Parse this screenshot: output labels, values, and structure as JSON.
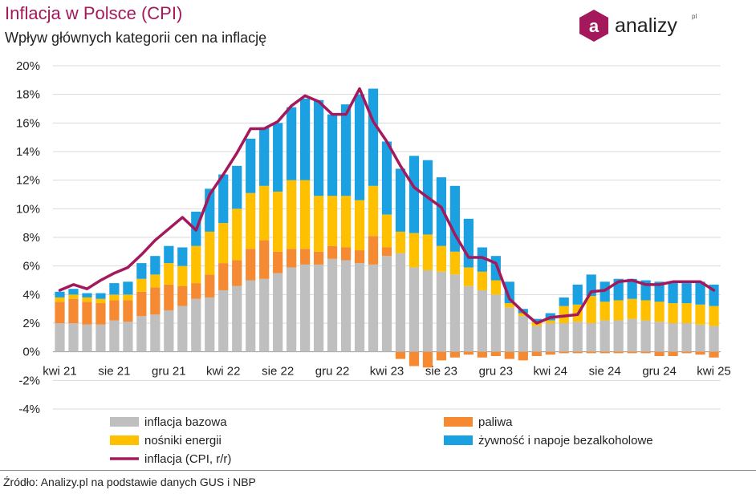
{
  "header": {
    "title": "Inflacja w Polsce (CPI)",
    "subtitle": "Wpływ głównych kategorii cen na inflację"
  },
  "logo": {
    "brand": "analizy",
    "suffix": "pl",
    "letter": "a",
    "color": "#a3195b"
  },
  "source": "Źródło: Analizy.pl na podstawie danych GUS i NBP",
  "colors": {
    "bazowa": "#bfbfbf",
    "paliwa": "#f58a33",
    "energia": "#ffc000",
    "zywnosc": "#1ba1e2",
    "cpi": "#a3195b",
    "title": "#a3195b"
  },
  "chart_data": {
    "type": "bar",
    "stacked": true,
    "categories": [
      "kwi 21",
      "maj 21",
      "cze 21",
      "lip 21",
      "sie 21",
      "wrz 21",
      "paź 21",
      "lis 21",
      "gru 21",
      "sty 22",
      "lut 22",
      "mar 22",
      "kwi 22",
      "maj 22",
      "cze 22",
      "lip 22",
      "sie 22",
      "wrz 22",
      "paź 22",
      "lis 22",
      "gru 22",
      "sty 23",
      "lut 23",
      "mar 23",
      "kwi 23",
      "maj 23",
      "cze 23",
      "lip 23",
      "sie 23",
      "wrz 23",
      "paź 23",
      "lis 23",
      "gru 23",
      "sty 24",
      "lut 24",
      "mar 24",
      "kwi 24",
      "maj 24",
      "cze 24",
      "lip 24",
      "sie 24",
      "wrz 24",
      "paź 24",
      "lis 24",
      "gru 24",
      "sty 25",
      "lut 25",
      "mar 25",
      "kwi 25"
    ],
    "tick_labels": [
      "kwi 21",
      "sie 21",
      "gru 21",
      "kwi 22",
      "sie 22",
      "gru 22",
      "kwi 23",
      "sie 23",
      "gru 23",
      "kwi 24",
      "sie 24",
      "gru 24",
      "kwi 25"
    ],
    "y_ticks": [
      "20%",
      "18%",
      "16%",
      "14%",
      "12%",
      "10%",
      "8%",
      "6%",
      "4%",
      "2%",
      "0%",
      "-2%",
      "-4%"
    ],
    "ylim": [
      -4,
      20
    ],
    "y_unit": "%",
    "series": [
      {
        "name": "inflacja bazowa",
        "key": "bazowa",
        "values": [
          2.0,
          2.0,
          1.9,
          1.9,
          2.2,
          2.1,
          2.5,
          2.6,
          2.9,
          3.2,
          3.7,
          3.8,
          4.3,
          4.6,
          5.0,
          5.1,
          5.5,
          5.9,
          6.1,
          6.1,
          6.5,
          6.4,
          6.2,
          6.1,
          6.7,
          6.9,
          5.9,
          5.7,
          5.6,
          5.4,
          4.6,
          4.3,
          4.0,
          3.1,
          2.5,
          1.8,
          2.0,
          2.0,
          2.1,
          2.0,
          2.2,
          2.2,
          2.3,
          2.2,
          2.1,
          2.0,
          2.0,
          1.9,
          1.8
        ]
      },
      {
        "name": "paliwa",
        "key": "paliwa",
        "values": [
          1.5,
          1.7,
          1.6,
          1.5,
          1.4,
          1.5,
          1.7,
          1.9,
          1.8,
          1.4,
          1.1,
          1.6,
          1.9,
          1.8,
          2.2,
          2.7,
          1.5,
          1.3,
          1.1,
          0.9,
          0.9,
          0.9,
          0.9,
          2.0,
          0.6,
          -0.5,
          -1.0,
          -1.1,
          -0.6,
          -0.4,
          -0.2,
          -0.4,
          -0.3,
          -0.5,
          -0.6,
          -0.3,
          -0.2,
          -0.1,
          -0.1,
          -0.1,
          -0.1,
          -0.1,
          -0.1,
          -0.1,
          -0.3,
          -0.3,
          -0.1,
          -0.2,
          -0.4
        ]
      },
      {
        "name": "nośniki energii",
        "key": "energia",
        "values": [
          0.3,
          0.3,
          0.3,
          0.3,
          0.4,
          0.4,
          0.9,
          0.9,
          1.5,
          1.4,
          2.6,
          3.0,
          2.8,
          3.6,
          3.9,
          3.8,
          4.2,
          4.8,
          4.8,
          3.9,
          3.5,
          3.6,
          3.5,
          3.5,
          2.3,
          1.5,
          2.4,
          2.5,
          1.8,
          1.6,
          1.3,
          1.3,
          1.0,
          0.3,
          0.2,
          0.3,
          0.2,
          1.2,
          1.2,
          1.9,
          1.3,
          1.4,
          1.4,
          1.4,
          1.4,
          1.4,
          1.4,
          1.4,
          1.4
        ]
      },
      {
        "name": "żywność i napoje bezalkoholowe",
        "key": "zywnosc",
        "values": [
          0.4,
          0.4,
          0.3,
          0.4,
          0.8,
          0.9,
          1.1,
          1.3,
          1.2,
          1.3,
          2.4,
          3.0,
          3.4,
          3.0,
          3.8,
          4.1,
          4.8,
          5.1,
          5.7,
          6.7,
          5.7,
          6.4,
          7.4,
          6.8,
          5.1,
          4.4,
          5.4,
          5.2,
          4.8,
          4.6,
          3.4,
          1.7,
          1.7,
          1.5,
          0.3,
          0.2,
          0.5,
          0.6,
          1.4,
          1.5,
          1.4,
          1.5,
          1.4,
          1.4,
          1.4,
          1.5,
          1.4,
          1.6,
          1.5
        ]
      }
    ],
    "line": {
      "name": "inflacja (CPI, r/r)",
      "values": [
        4.3,
        4.7,
        4.4,
        5.0,
        5.5,
        5.9,
        6.8,
        7.8,
        8.6,
        9.4,
        8.5,
        11.0,
        12.4,
        13.9,
        15.6,
        15.6,
        16.1,
        17.2,
        17.9,
        17.5,
        16.6,
        16.6,
        18.4,
        16.1,
        14.7,
        13.0,
        11.5,
        10.8,
        10.1,
        8.2,
        6.6,
        6.6,
        6.2,
        3.7,
        2.8,
        2.0,
        2.4,
        2.5,
        2.6,
        4.2,
        4.3,
        4.9,
        5.0,
        4.7,
        4.7,
        4.9,
        4.9,
        4.9,
        4.3
      ]
    },
    "legend": [
      {
        "label": "inflacja bazowa",
        "key": "bazowa",
        "type": "box"
      },
      {
        "label": "paliwa",
        "key": "paliwa",
        "type": "box"
      },
      {
        "label": "nośniki energii",
        "key": "energia",
        "type": "box"
      },
      {
        "label": "żywność i napoje bezalkoholowe",
        "key": "zywnosc",
        "type": "box"
      },
      {
        "label": "inflacja (CPI, r/r)",
        "key": "cpi",
        "type": "line"
      }
    ],
    "legend_position": "bottom",
    "grid": true
  }
}
